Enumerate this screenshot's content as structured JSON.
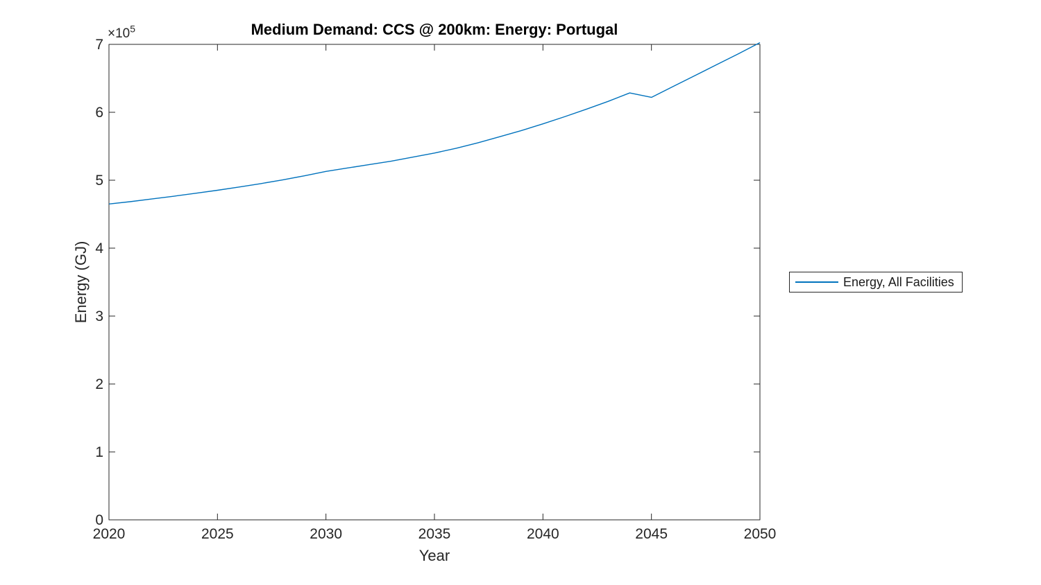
{
  "figure": {
    "background": "#ffffff",
    "y_offset_base": "×10",
    "y_offset_exp": "5",
    "colors": {
      "line": "#0072BD",
      "axis": "#262626",
      "title": "#000000",
      "tick_labels": "#262626"
    }
  },
  "chart_data": {
    "type": "line",
    "title": "Medium Demand: CCS @ 200km: Energy: Portugal",
    "xlabel": "Year",
    "ylabel": "Energy (GJ)",
    "x": [
      2020,
      2021,
      2022,
      2023,
      2024,
      2025,
      2026,
      2027,
      2028,
      2029,
      2030,
      2031,
      2032,
      2033,
      2034,
      2035,
      2036,
      2037,
      2038,
      2039,
      2040,
      2041,
      2042,
      2043,
      2044,
      2045,
      2046,
      2047,
      2048,
      2049,
      2050
    ],
    "series": [
      {
        "name": "Energy, All Facilities",
        "color": "#0072BD",
        "values": [
          465000,
          468500,
          472500,
          476500,
          480800,
          485200,
          490000,
          495000,
          500500,
          506500,
          513000,
          518000,
          523000,
          528000,
          534000,
          540000,
          547000,
          555000,
          564000,
          573000,
          583000,
          593500,
          604500,
          616000,
          628500,
          622000,
          638000,
          654000,
          670000,
          686000,
          702500
        ]
      }
    ],
    "xlim": [
      2020,
      2050
    ],
    "ylim": [
      0,
      700000
    ],
    "xticks": [
      2020,
      2025,
      2030,
      2035,
      2040,
      2045,
      2050
    ],
    "xtick_labels": [
      "2020",
      "2025",
      "2030",
      "2035",
      "2040",
      "2045",
      "2050"
    ],
    "yticks": [
      0,
      100000,
      200000,
      300000,
      400000,
      500000,
      600000,
      700000
    ],
    "ytick_labels": [
      "0",
      "1",
      "2",
      "3",
      "4",
      "5",
      "6",
      "7"
    ],
    "y_axis_multiplier": "×10^5",
    "grid": false,
    "legend_position": "outside-right",
    "legend_entries": [
      "Energy, All Facilities"
    ]
  }
}
